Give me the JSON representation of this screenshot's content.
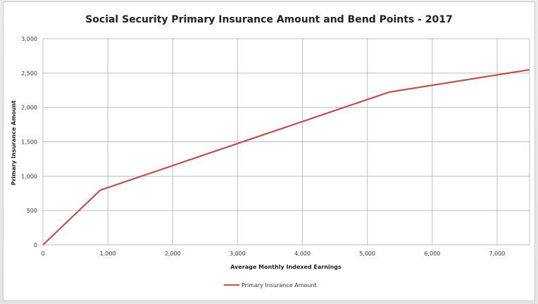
{
  "chart_data": {
    "type": "line",
    "title": "Social Security Primary Insurance Amount and Bend Points - 2017",
    "xlabel": "Average Monthly Indexed Earnings",
    "ylabel": "Primary Insurance Amount",
    "xlim": [
      0,
      7500
    ],
    "ylim": [
      0,
      3000
    ],
    "xticks": [
      0,
      1000,
      2000,
      3000,
      4000,
      5000,
      6000,
      7000
    ],
    "xtick_labels": [
      "0",
      "1,000",
      "2,000",
      "3,000",
      "4,000",
      "5,000",
      "6,000",
      "7,000"
    ],
    "yticks": [
      0,
      500,
      1000,
      1500,
      2000,
      2500,
      3000
    ],
    "ytick_labels": [
      "0",
      "500",
      "1,000",
      "1,500",
      "2,000",
      "2,500",
      "3,000"
    ],
    "grid": true,
    "legend_position": "bottom",
    "series": [
      {
        "name": "Primary Insurance Amount",
        "color": "#c0504d",
        "x": [
          0,
          885,
          5336,
          7500
        ],
        "y": [
          0,
          797,
          2223,
          2548
        ]
      }
    ]
  }
}
